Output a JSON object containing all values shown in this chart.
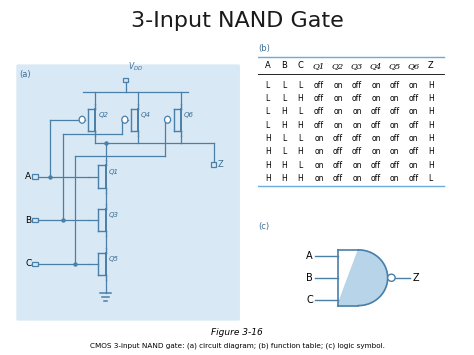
{
  "title": "3-Input NAND Gate",
  "title_fontsize": 16,
  "bg_color": "#ffffff",
  "panel_bg": "#d8e8f4",
  "label_a": "(a)",
  "label_b": "(b)",
  "label_c": "(c)",
  "figure_caption": "Figure 3-16",
  "bottom_caption": "CMOS 3-input NAND gate: (a) circuit diagram; (b) function table; (c) logic symbol.",
  "table_headers": [
    "A",
    "B",
    "C",
    "Q1",
    "Q2",
    "Q3",
    "Q4",
    "Q5",
    "Q6",
    "Z"
  ],
  "table_rows": [
    [
      "L",
      "L",
      "L",
      "off",
      "on",
      "off",
      "on",
      "off",
      "on",
      "H"
    ],
    [
      "L",
      "L",
      "H",
      "off",
      "on",
      "off",
      "on",
      "on",
      "off",
      "H"
    ],
    [
      "L",
      "H",
      "L",
      "off",
      "on",
      "on",
      "off",
      "off",
      "on",
      "H"
    ],
    [
      "L",
      "H",
      "H",
      "off",
      "on",
      "on",
      "off",
      "on",
      "off",
      "H"
    ],
    [
      "H",
      "L",
      "L",
      "on",
      "off",
      "off",
      "on",
      "off",
      "on",
      "H"
    ],
    [
      "H",
      "L",
      "H",
      "on",
      "off",
      "off",
      "on",
      "on",
      "off",
      "H"
    ],
    [
      "H",
      "H",
      "L",
      "on",
      "off",
      "on",
      "off",
      "off",
      "on",
      "H"
    ],
    [
      "H",
      "H",
      "H",
      "on",
      "off",
      "on",
      "off",
      "on",
      "off",
      "L"
    ]
  ],
  "line_color": "#4a7fa8",
  "text_color": "#3a6e96",
  "gate_fill": "#b8d4e8",
  "gate_stroke": "#4a7fa8",
  "table_line_color": "#6aabe0",
  "caption_color": "#444444"
}
